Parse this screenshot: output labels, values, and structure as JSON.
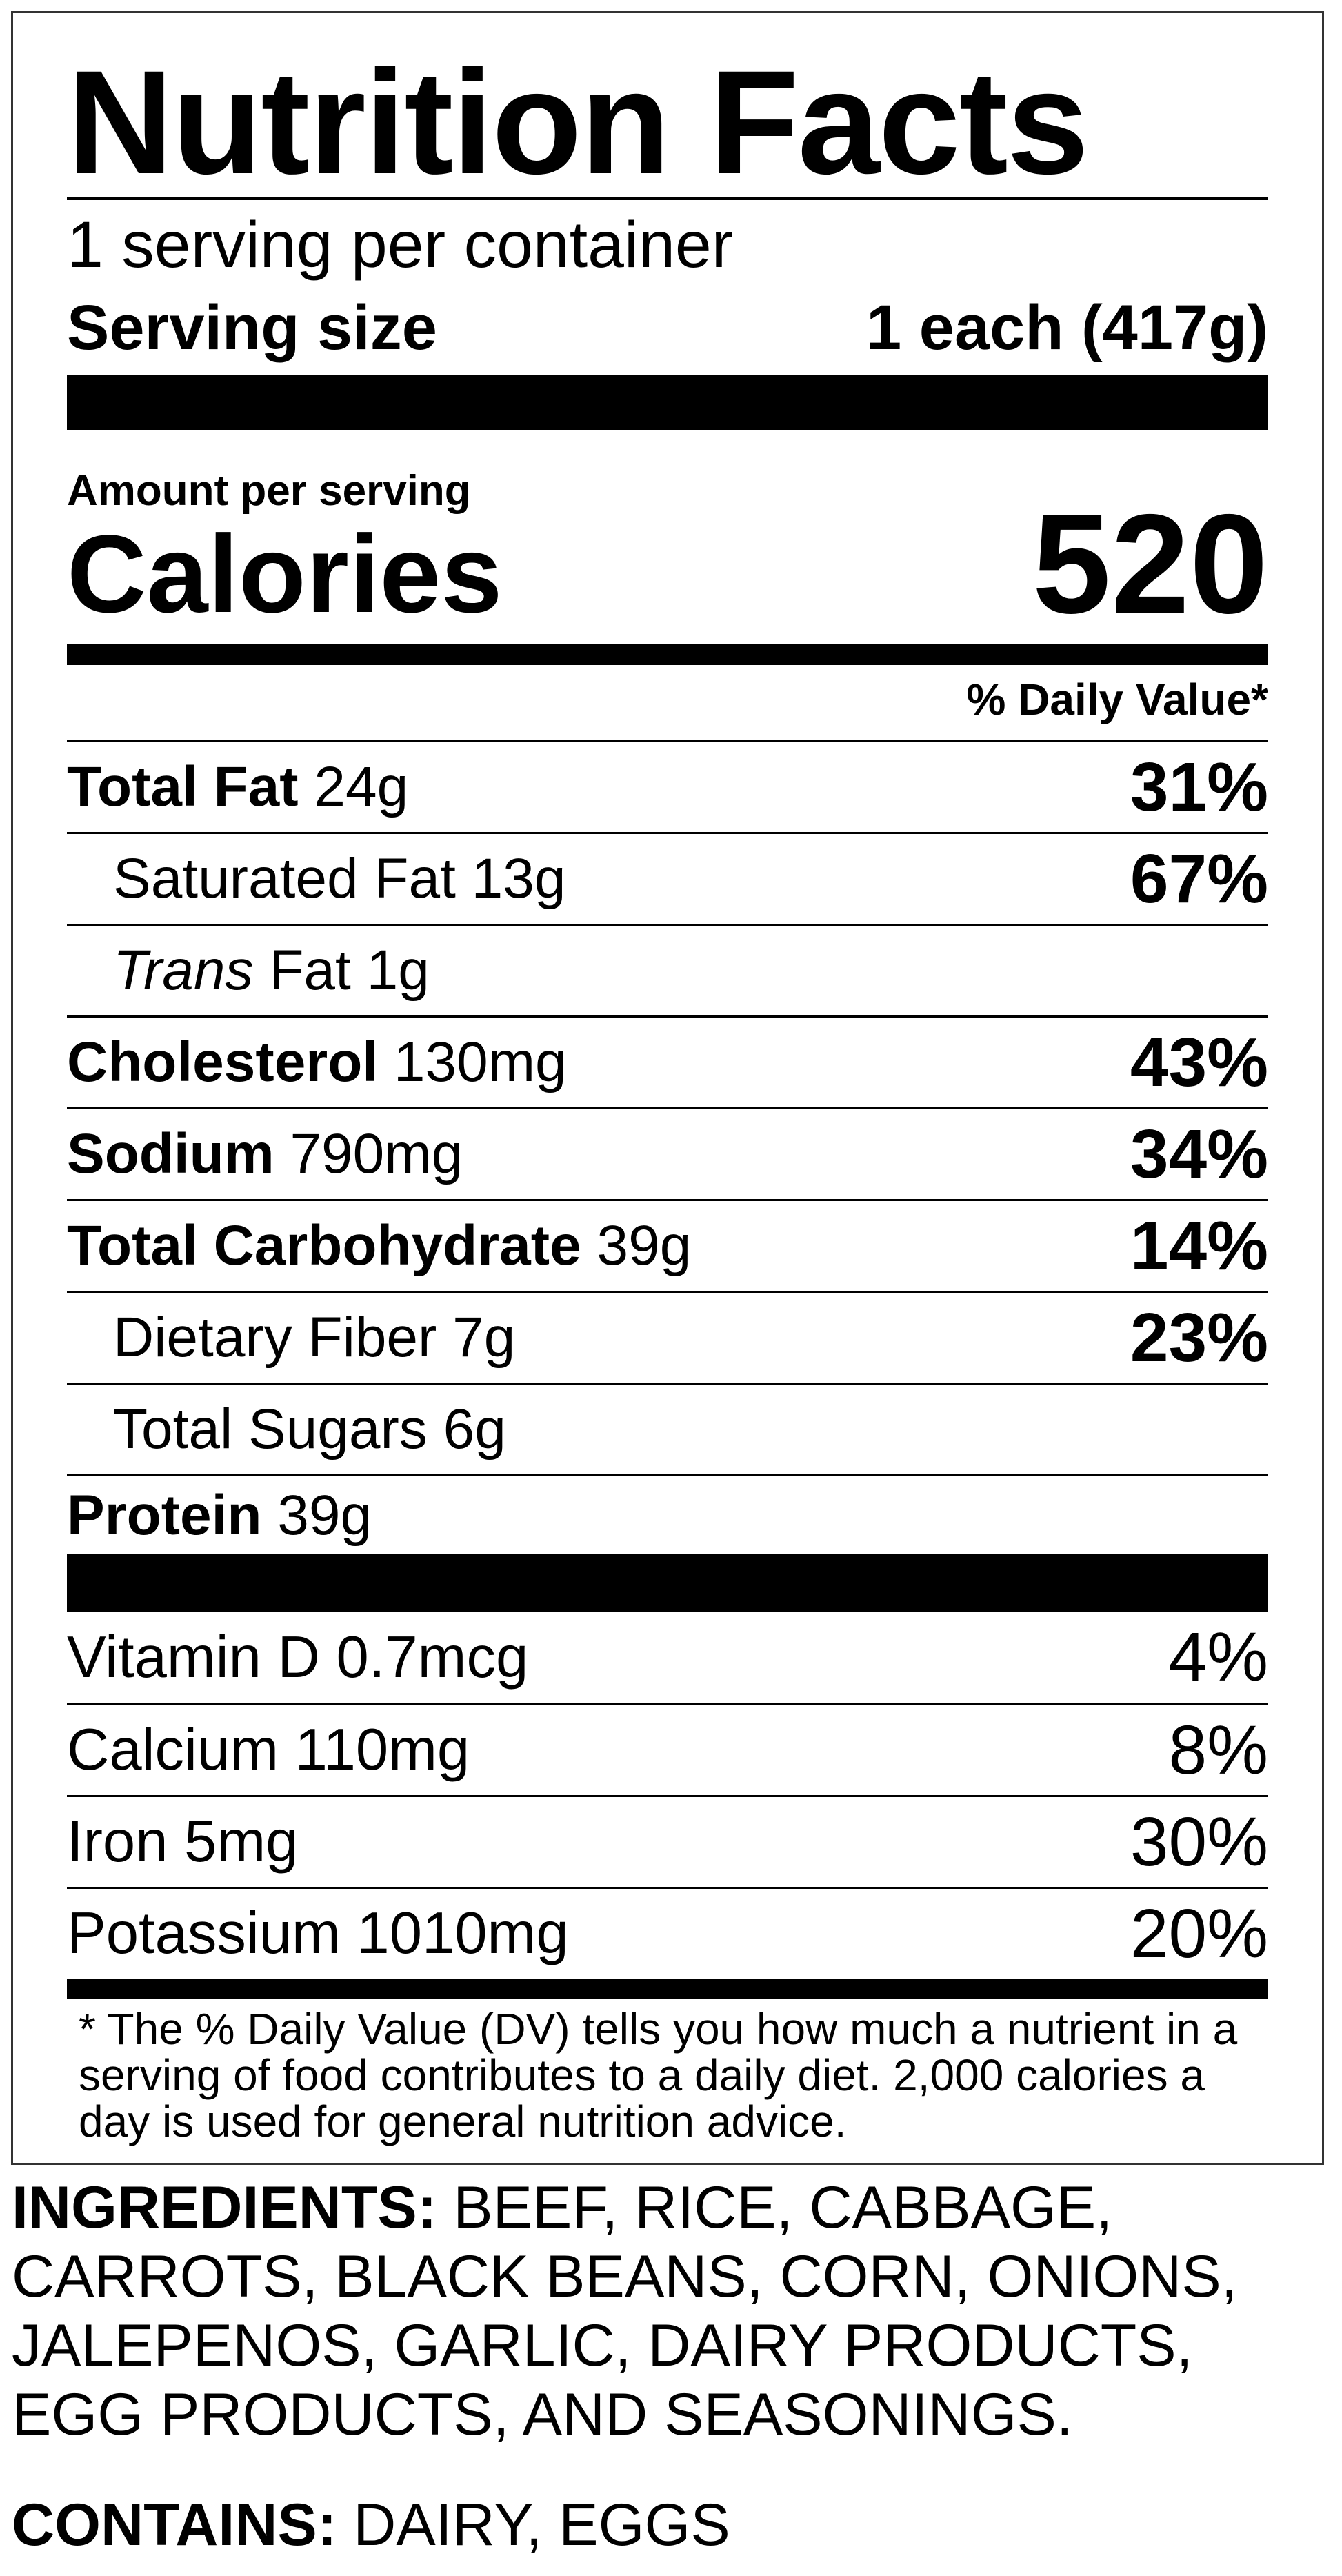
{
  "title": "Nutrition Facts",
  "servings_per_container": "1 serving per container",
  "serving_size": {
    "label": "Serving size",
    "value": "1 each (417g)"
  },
  "amount_per_serving": "Amount per serving",
  "calories": {
    "label": "Calories",
    "value": "520"
  },
  "daily_value_header": "% Daily Value*",
  "nutrients": [
    {
      "name": "Total Fat",
      "amount": "24g",
      "dv": "31%"
    },
    {
      "name": "Saturated Fat",
      "amount": "13g",
      "dv": "67%"
    },
    {
      "name_italic": "Trans",
      "name": "Fat",
      "amount": "1g",
      "dv": ""
    },
    {
      "name": "Cholesterol",
      "amount": "130mg",
      "dv": "43%"
    },
    {
      "name": "Sodium",
      "amount": "790mg",
      "dv": "34%"
    },
    {
      "name": "Total Carbohydrate",
      "amount": "39g",
      "dv": "14%"
    },
    {
      "name": "Dietary Fiber",
      "amount": "7g",
      "dv": "23%"
    },
    {
      "name": "Total Sugars",
      "amount": "6g",
      "dv": ""
    },
    {
      "name": "Protein",
      "amount": "39g",
      "dv": ""
    }
  ],
  "vitamins": [
    {
      "name": "Vitamin D 0.7mcg",
      "dv": "4%"
    },
    {
      "name": "Calcium 110mg",
      "dv": "8%"
    },
    {
      "name": "Iron 5mg",
      "dv": "30%"
    },
    {
      "name": "Potassium 1010mg",
      "dv": "20%"
    }
  ],
  "footnote": "* The % Daily Value (DV) tells you how much a nutrient in a serving of food contributes to a daily diet. 2,000 calories a day is used for general nutrition advice.",
  "ingredients": {
    "label": "INGREDIENTS:",
    "text": "BEEF, RICE, CABBAGE, CARROTS, BLACK BEANS, CORN, ONIONS, JALEPENOS, GARLIC, DAIRY PRODUCTS, EGG PRODUCTS, AND SEASONINGS."
  },
  "contains": {
    "label": "CONTAINS:",
    "text": "DAIRY, EGGS"
  }
}
